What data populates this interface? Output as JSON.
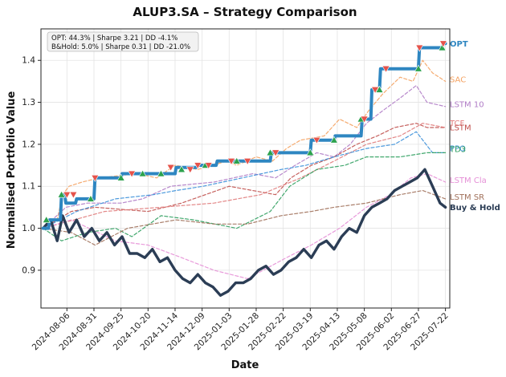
{
  "chart_data": {
    "type": "line",
    "title": "ALUP3.SA – Strategy Comparison",
    "xlabel": "Date",
    "ylabel": "Normalised Portfolio Value",
    "ylim": [
      0.81,
      1.475
    ],
    "yticks": [
      0.9,
      1.0,
      1.1,
      1.2,
      1.3,
      1.4
    ],
    "ytick_labels": [
      "0.9",
      "1.0",
      "1.1",
      "1.2",
      "1.3",
      "1.4"
    ],
    "xlim": [
      "2024-07-13",
      "2025-07-26"
    ],
    "xticks": [
      "2024-08-06",
      "2024-08-31",
      "2024-09-25",
      "2024-10-20",
      "2024-11-14",
      "2024-12-09",
      "2025-01-03",
      "2025-01-28",
      "2025-02-22",
      "2025-03-19",
      "2025-04-13",
      "2025-05-08",
      "2025-06-02",
      "2025-06-27",
      "2025-07-22"
    ],
    "grid": true,
    "stats_box": {
      "lines": [
        "OPT: 44.3% | Sharpe 3.21 | DD -4.1%",
        "B&Hold: 5.0% | Sharpe 0.31 | DD -21.0%"
      ],
      "placement": "top-left"
    },
    "series": [
      {
        "name": "SAC",
        "color": "#f4a261",
        "style": "dashed",
        "x": [
          "2024-07-15",
          "2024-07-28",
          "2024-08-02",
          "2024-08-08",
          "2024-08-20",
          "2024-09-05",
          "2024-10-10",
          "2024-10-28",
          "2024-11-14",
          "2024-12-05",
          "2025-01-01",
          "2025-01-10",
          "2025-01-28",
          "2025-02-12",
          "2025-02-25",
          "2025-03-10",
          "2025-04-01",
          "2025-04-15",
          "2025-05-01",
          "2025-05-12",
          "2025-05-25",
          "2025-06-10",
          "2025-06-22",
          "2025-07-01",
          "2025-07-10",
          "2025-07-22"
        ],
        "values": [
          1.0,
          1.02,
          1.08,
          1.1,
          1.11,
          1.12,
          1.13,
          1.12,
          1.15,
          1.14,
          1.16,
          1.15,
          1.17,
          1.16,
          1.19,
          1.21,
          1.22,
          1.26,
          1.24,
          1.28,
          1.32,
          1.36,
          1.35,
          1.4,
          1.37,
          1.35
        ]
      },
      {
        "name": "LSTM 10",
        "color": "#b07cc6",
        "style": "dashed",
        "x": [
          "2024-07-15",
          "2024-08-05",
          "2024-08-25",
          "2024-09-25",
          "2024-10-15",
          "2024-11-10",
          "2024-12-20",
          "2025-01-25",
          "2025-02-15",
          "2025-03-05",
          "2025-03-25",
          "2025-04-10",
          "2025-04-25",
          "2025-05-10",
          "2025-05-25",
          "2025-06-10",
          "2025-06-25",
          "2025-07-05",
          "2025-07-22"
        ],
        "values": [
          1.0,
          1.05,
          1.06,
          1.06,
          1.07,
          1.1,
          1.11,
          1.13,
          1.12,
          1.15,
          1.18,
          1.17,
          1.2,
          1.25,
          1.28,
          1.31,
          1.34,
          1.3,
          1.29
        ]
      },
      {
        "name": "LSTM",
        "color": "#c0504d",
        "style": "dashed",
        "x": [
          "2024-07-15",
          "2024-08-10",
          "2024-09-01",
          "2024-10-20",
          "2024-11-20",
          "2025-01-03",
          "2025-02-15",
          "2025-03-01",
          "2025-03-20",
          "2025-04-10",
          "2025-05-01",
          "2025-05-20",
          "2025-06-05",
          "2025-06-25",
          "2025-07-05",
          "2025-07-22"
        ],
        "values": [
          1.0,
          1.04,
          1.05,
          1.04,
          1.06,
          1.1,
          1.08,
          1.12,
          1.15,
          1.17,
          1.2,
          1.22,
          1.24,
          1.25,
          1.24,
          1.24
        ]
      },
      {
        "name": "TCF",
        "color": "#e07b7b",
        "style": "dashed",
        "x": [
          "2024-07-15",
          "2024-09-10",
          "2024-11-01",
          "2024-12-20",
          "2025-02-01",
          "2025-03-10",
          "2025-04-10",
          "2025-05-10",
          "2025-06-10",
          "2025-07-01",
          "2025-07-22"
        ],
        "values": [
          1.0,
          1.04,
          1.05,
          1.06,
          1.08,
          1.12,
          1.16,
          1.2,
          1.22,
          1.25,
          1.24
        ]
      },
      {
        "name": "PPO",
        "color": "#3a8fd9",
        "style": "dashed",
        "x": [
          "2024-07-15",
          "2024-08-15",
          "2024-09-20",
          "2024-10-25",
          "2024-11-15",
          "2024-12-10",
          "2025-01-15",
          "2025-02-20",
          "2025-03-15",
          "2025-04-10",
          "2025-05-10",
          "2025-06-05",
          "2025-06-25",
          "2025-07-10",
          "2025-07-22"
        ],
        "values": [
          1.0,
          1.04,
          1.07,
          1.08,
          1.09,
          1.1,
          1.12,
          1.14,
          1.15,
          1.17,
          1.19,
          1.2,
          1.23,
          1.18,
          1.18
        ]
      },
      {
        "name": "TD3",
        "color": "#2e9e5e",
        "style": "dashed",
        "x": [
          "2024-07-15",
          "2024-08-01",
          "2024-08-25",
          "2024-09-20",
          "2024-10-05",
          "2024-11-01",
          "2024-12-01",
          "2025-01-10",
          "2025-02-10",
          "2025-02-28",
          "2025-03-25",
          "2025-04-20",
          "2025-05-10",
          "2025-06-10",
          "2025-07-05",
          "2025-07-22"
        ],
        "values": [
          1.0,
          0.97,
          0.99,
          1.0,
          0.98,
          1.03,
          1.02,
          1.0,
          1.04,
          1.1,
          1.14,
          1.15,
          1.17,
          1.17,
          1.18,
          1.18
        ]
      },
      {
        "name": "LSTM Cla",
        "color": "#e58fd6",
        "style": "dashed",
        "x": [
          "2024-07-15",
          "2024-08-10",
          "2024-09-20",
          "2024-10-20",
          "2024-11-20",
          "2024-12-20",
          "2025-01-20",
          "2025-02-25",
          "2025-03-20",
          "2025-04-15",
          "2025-05-10",
          "2025-06-01",
          "2025-06-20",
          "2025-07-05",
          "2025-07-22"
        ],
        "values": [
          1.0,
          1.02,
          0.97,
          0.96,
          0.93,
          0.9,
          0.88,
          0.93,
          0.96,
          1.0,
          1.05,
          1.08,
          1.12,
          1.13,
          1.11
        ]
      },
      {
        "name": "LSTM SR",
        "color": "#a0705a",
        "style": "dashed",
        "x": [
          "2024-07-15",
          "2024-08-10",
          "2024-09-01",
          "2024-10-01",
          "2024-11-15",
          "2024-12-20",
          "2025-01-20",
          "2025-02-20",
          "2025-03-20",
          "2025-04-10",
          "2025-05-10",
          "2025-06-10",
          "2025-07-01",
          "2025-07-22"
        ],
        "values": [
          1.0,
          0.99,
          0.96,
          1.0,
          1.02,
          1.01,
          1.01,
          1.03,
          1.04,
          1.05,
          1.06,
          1.08,
          1.09,
          1.07
        ]
      },
      {
        "name": "Buy & Hold",
        "color": "#2b3d55",
        "style": "solid",
        "x": [
          "2024-07-15",
          "2024-07-22",
          "2024-07-28",
          "2024-08-02",
          "2024-08-08",
          "2024-08-15",
          "2024-08-22",
          "2024-08-29",
          "2024-09-05",
          "2024-09-12",
          "2024-09-19",
          "2024-09-26",
          "2024-10-03",
          "2024-10-10",
          "2024-10-17",
          "2024-10-24",
          "2024-10-31",
          "2024-11-07",
          "2024-11-14",
          "2024-11-21",
          "2024-11-28",
          "2024-12-05",
          "2024-12-12",
          "2024-12-19",
          "2024-12-26",
          "2025-01-02",
          "2025-01-09",
          "2025-01-16",
          "2025-01-23",
          "2025-01-30",
          "2025-02-06",
          "2025-02-13",
          "2025-02-20",
          "2025-02-27",
          "2025-03-06",
          "2025-03-13",
          "2025-03-20",
          "2025-03-27",
          "2025-04-03",
          "2025-04-10",
          "2025-04-17",
          "2025-04-24",
          "2025-05-01",
          "2025-05-08",
          "2025-05-15",
          "2025-05-22",
          "2025-05-29",
          "2025-06-05",
          "2025-06-12",
          "2025-06-19",
          "2025-06-26",
          "2025-07-03",
          "2025-07-10",
          "2025-07-17",
          "2025-07-22"
        ],
        "values": [
          1.0,
          1.02,
          0.97,
          1.03,
          0.99,
          1.02,
          0.98,
          1.0,
          0.97,
          0.99,
          0.96,
          0.98,
          0.94,
          0.94,
          0.93,
          0.95,
          0.92,
          0.93,
          0.9,
          0.88,
          0.87,
          0.89,
          0.87,
          0.86,
          0.84,
          0.85,
          0.87,
          0.87,
          0.88,
          0.9,
          0.91,
          0.89,
          0.9,
          0.92,
          0.93,
          0.95,
          0.93,
          0.96,
          0.97,
          0.95,
          0.98,
          1.0,
          0.99,
          1.03,
          1.05,
          1.06,
          1.07,
          1.09,
          1.1,
          1.11,
          1.12,
          1.14,
          1.1,
          1.06,
          1.05
        ]
      },
      {
        "name": "OPT",
        "color": "#2e86c1",
        "style": "solid",
        "x": [
          "2024-07-15",
          "2024-07-20",
          "2024-07-21",
          "2024-07-31",
          "2024-08-01",
          "2024-08-04",
          "2024-08-05",
          "2024-08-14",
          "2024-08-15",
          "2024-08-31",
          "2024-09-01",
          "2024-09-04",
          "2024-09-05",
          "2024-09-25",
          "2024-09-26",
          "2024-11-14",
          "2024-11-15",
          "2024-12-04",
          "2024-12-05",
          "2024-12-22",
          "2024-12-23",
          "2025-02-10",
          "2025-02-11",
          "2025-03-19",
          "2025-03-20",
          "2025-04-10",
          "2025-04-11",
          "2025-05-05",
          "2025-05-06",
          "2025-05-14",
          "2025-05-15",
          "2025-05-22",
          "2025-05-23",
          "2025-06-27",
          "2025-06-28",
          "2025-07-19",
          "2025-07-20",
          "2025-07-22"
        ],
        "values": [
          1.0,
          1.0,
          1.02,
          1.02,
          1.08,
          1.08,
          1.06,
          1.06,
          1.07,
          1.07,
          1.12,
          1.12,
          1.12,
          1.12,
          1.13,
          1.13,
          1.145,
          1.145,
          1.15,
          1.15,
          1.16,
          1.16,
          1.18,
          1.18,
          1.21,
          1.21,
          1.22,
          1.22,
          1.26,
          1.26,
          1.33,
          1.33,
          1.38,
          1.38,
          1.43,
          1.43,
          1.44,
          1.44
        ]
      }
    ],
    "markers": {
      "buy": {
        "symbol": "triangle-up",
        "color": "#2ca24d",
        "x": [
          "2024-07-18",
          "2024-08-01",
          "2024-08-28",
          "2024-09-25",
          "2024-10-15",
          "2024-11-01",
          "2024-11-20",
          "2024-12-12",
          "2025-01-10",
          "2025-02-10",
          "2025-03-19",
          "2025-04-10",
          "2025-05-05",
          "2025-05-22",
          "2025-06-27",
          "2025-07-19"
        ],
        "y": [
          1.02,
          1.08,
          1.07,
          1.12,
          1.13,
          1.13,
          1.14,
          1.15,
          1.16,
          1.18,
          1.18,
          1.21,
          1.26,
          1.33,
          1.38,
          1.43
        ]
      },
      "sell": {
        "symbol": "triangle-down",
        "color": "#e5534b",
        "x": [
          "2024-08-06",
          "2024-08-12",
          "2024-09-01",
          "2024-10-05",
          "2024-11-10",
          "2024-11-28",
          "2024-12-05",
          "2024-12-15",
          "2025-01-05",
          "2025-01-20",
          "2025-02-15",
          "2025-03-25",
          "2025-05-08",
          "2025-05-18",
          "2025-05-28",
          "2025-06-28",
          "2025-07-20"
        ],
        "y": [
          1.08,
          1.08,
          1.12,
          1.13,
          1.145,
          1.14,
          1.15,
          1.15,
          1.16,
          1.16,
          1.18,
          1.21,
          1.26,
          1.33,
          1.38,
          1.43,
          1.44
        ]
      }
    },
    "end_labels": [
      {
        "text": "OPT",
        "y": 1.44,
        "color": "#2e86c1",
        "bold": true
      },
      {
        "text": "SAC",
        "y": 1.355,
        "color": "#f4a261"
      },
      {
        "text": "LSTM 10",
        "y": 1.295,
        "color": "#b07cc6"
      },
      {
        "text": "TCF",
        "y": 1.25,
        "color": "#e07b7b"
      },
      {
        "text": "LSTM",
        "y": 1.24,
        "color": "#c0504d"
      },
      {
        "text": "PPO",
        "y": 1.19,
        "color": "#3a8fd9"
      },
      {
        "text": "TD3",
        "y": 1.188,
        "color": "#2e9e5e"
      },
      {
        "text": "LSTM Cla",
        "y": 1.115,
        "color": "#e58fd6"
      },
      {
        "text": "LSTM SR",
        "y": 1.075,
        "color": "#a0705a"
      },
      {
        "text": "Buy & Hold",
        "y": 1.05,
        "color": "#2b3d55",
        "bold": true
      }
    ]
  }
}
